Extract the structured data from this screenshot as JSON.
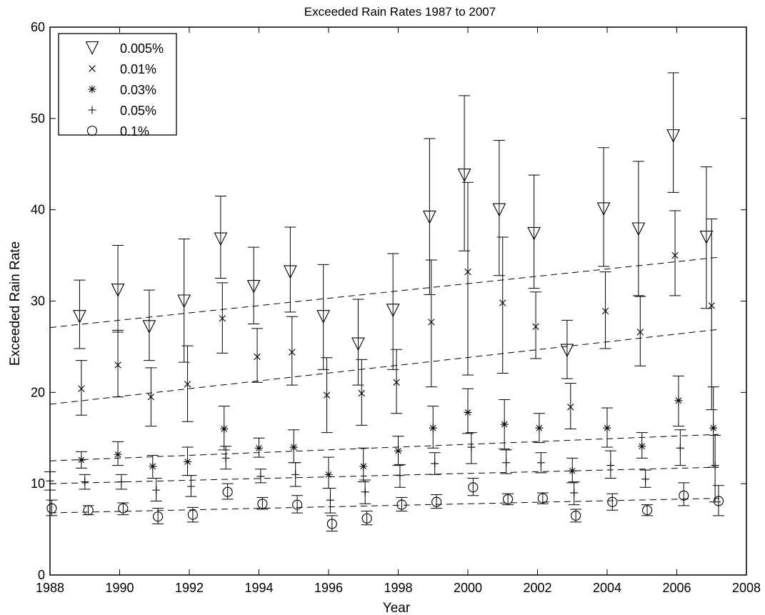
{
  "chart_data": {
    "type": "scatter",
    "title": "Exceeded Rain Rates 1987 to 2007",
    "xlabel": "Year",
    "ylabel": "Exceeded Rain Rate",
    "xlim": [
      1988,
      2008
    ],
    "ylim": [
      0,
      60
    ],
    "xticks": [
      1988,
      1990,
      1992,
      1994,
      1996,
      1998,
      2000,
      2002,
      2004,
      2006,
      2008
    ],
    "yticks": [
      0,
      10,
      20,
      30,
      40,
      50,
      60
    ],
    "grid": false,
    "legend_position": "top-left",
    "series": [
      {
        "name": "0.005%",
        "marker": "triangle-down",
        "x": [
          1988.85,
          1989.95,
          1990.85,
          1991.85,
          1992.9,
          1993.85,
          1994.9,
          1995.85,
          1996.85,
          1997.85,
          1998.9,
          1999.9,
          2000.9,
          2001.9,
          2002.85,
          2003.9,
          2004.9,
          2005.9,
          2006.85
        ],
        "y": [
          28.3,
          31.2,
          27.2,
          30.0,
          36.8,
          31.6,
          33.2,
          28.3,
          25.3,
          29.0,
          39.2,
          43.8,
          40.0,
          37.4,
          24.6,
          40.1,
          37.9,
          48.1,
          37.0
        ],
        "lower": [
          24.8,
          26.6,
          23.5,
          23.3,
          32.5,
          27.5,
          28.8,
          22.5,
          20.8,
          22.5,
          30.7,
          35.5,
          32.8,
          31.4,
          21.5,
          33.8,
          30.6,
          41.9,
          29.2
        ],
        "upper": [
          32.3,
          36.1,
          31.2,
          36.8,
          41.5,
          35.9,
          38.1,
          34.0,
          30.2,
          35.2,
          47.8,
          52.5,
          47.6,
          43.8,
          27.9,
          46.8,
          45.3,
          55.0,
          44.7
        ]
      },
      {
        "name": "0.01%",
        "marker": "x",
        "x": [
          1988.9,
          1989.95,
          1990.9,
          1991.95,
          1992.95,
          1993.95,
          1994.95,
          1995.95,
          1996.95,
          1997.95,
          1998.95,
          2000.0,
          2001.0,
          2001.95,
          2002.95,
          2003.95,
          2004.95,
          2005.95,
          2007.0
        ],
        "y": [
          20.4,
          23.0,
          19.5,
          20.9,
          28.1,
          23.9,
          24.4,
          19.7,
          19.9,
          21.1,
          27.7,
          33.2,
          29.8,
          27.2,
          18.4,
          28.9,
          26.6,
          35.0,
          29.5
        ],
        "lower": [
          17.5,
          19.5,
          16.3,
          16.8,
          24.3,
          21.1,
          20.8,
          15.6,
          16.4,
          17.7,
          20.6,
          21.9,
          22.1,
          23.7,
          16.0,
          24.8,
          22.9,
          30.6,
          18.1
        ],
        "upper": [
          23.5,
          26.8,
          22.7,
          25.1,
          32.0,
          27.0,
          28.3,
          23.8,
          23.6,
          24.7,
          34.5,
          43.0,
          37.0,
          31.0,
          21.0,
          33.2,
          30.5,
          39.9,
          39.0
        ]
      },
      {
        "name": "0.03%",
        "marker": "asterisk",
        "x": [
          1988.9,
          1989.95,
          1990.95,
          1991.95,
          1993.0,
          1994.0,
          1995.0,
          1996.0,
          1997.0,
          1998.0,
          1999.0,
          2000.0,
          2001.05,
          2002.05,
          2003.0,
          2004.0,
          2005.0,
          2006.05,
          2007.05
        ],
        "y": [
          12.6,
          13.2,
          11.9,
          12.4,
          16.0,
          13.9,
          14.0,
          11.0,
          11.9,
          13.6,
          16.1,
          17.8,
          16.5,
          16.1,
          11.4,
          16.1,
          14.1,
          19.1,
          16.1
        ],
        "lower": [
          11.7,
          12.0,
          10.6,
          10.9,
          13.7,
          12.9,
          12.3,
          9.5,
          10.2,
          12.0,
          13.9,
          15.5,
          13.8,
          14.5,
          10.1,
          14.0,
          12.8,
          16.3,
          11.8
        ],
        "upper": [
          13.5,
          14.6,
          13.1,
          14.0,
          18.5,
          15.0,
          15.9,
          12.9,
          13.9,
          15.2,
          18.5,
          20.4,
          19.2,
          17.7,
          12.8,
          18.3,
          15.6,
          21.8,
          20.6
        ]
      },
      {
        "name": "0.05%",
        "marker": "plus",
        "x": [
          1988.0,
          1989.0,
          1990.05,
          1991.05,
          1992.05,
          1993.05,
          1994.05,
          1995.05,
          1996.05,
          1997.05,
          1998.05,
          1999.05,
          2000.1,
          2001.1,
          2002.1,
          2003.05,
          2004.1,
          2005.1,
          2006.1,
          2007.1
        ],
        "y": [
          10.3,
          10.2,
          10.2,
          9.3,
          9.7,
          12.8,
          10.8,
          11.0,
          8.2,
          9.1,
          10.9,
          12.2,
          14.0,
          12.3,
          12.3,
          9.0,
          12.0,
          10.5,
          13.9,
          12.0
        ],
        "lower": [
          9.3,
          9.4,
          9.4,
          8.1,
          8.6,
          11.6,
          10.1,
          9.7,
          6.8,
          7.8,
          9.6,
          11.0,
          12.2,
          11.1,
          11.2,
          7.7,
          10.6,
          9.6,
          12.0,
          8.0
        ],
        "upper": [
          11.3,
          11.0,
          11.0,
          10.6,
          10.9,
          14.1,
          11.6,
          12.3,
          9.5,
          10.4,
          12.1,
          13.4,
          15.6,
          13.7,
          13.4,
          10.2,
          13.6,
          11.5,
          15.9,
          15.3
        ]
      },
      {
        "name": "0.1%",
        "marker": "circle",
        "x": [
          1988.05,
          1989.1,
          1990.1,
          1991.1,
          1992.1,
          1993.1,
          1994.1,
          1995.1,
          1996.1,
          1997.1,
          1998.1,
          1999.1,
          2000.15,
          2001.15,
          2002.15,
          2003.1,
          2004.15,
          2005.15,
          2006.2,
          2007.2
        ],
        "y": [
          7.3,
          7.1,
          7.3,
          6.4,
          6.6,
          9.1,
          7.8,
          7.7,
          5.6,
          6.2,
          7.7,
          8.0,
          9.6,
          8.3,
          8.4,
          6.5,
          8.0,
          7.1,
          8.7,
          8.1
        ],
        "lower": [
          6.5,
          6.6,
          6.6,
          5.6,
          5.8,
          8.3,
          7.2,
          6.8,
          4.8,
          5.5,
          7.0,
          7.3,
          8.7,
          7.7,
          7.8,
          5.8,
          7.1,
          6.5,
          7.6,
          6.5
        ],
        "upper": [
          8.2,
          7.6,
          7.9,
          7.3,
          7.4,
          10.0,
          8.5,
          8.7,
          6.5,
          7.0,
          8.5,
          8.8,
          10.6,
          8.9,
          9.0,
          7.2,
          8.9,
          7.7,
          10.1,
          9.8
        ]
      }
    ],
    "trend_lines": [
      {
        "style": "dashed",
        "x": [
          1988,
          2007.2
        ],
        "y": [
          27.1,
          34.8
        ]
      },
      {
        "style": "dashed",
        "x": [
          1988,
          2007.2
        ],
        "y": [
          18.7,
          26.9
        ]
      },
      {
        "style": "dashed",
        "x": [
          1988,
          2007.2
        ],
        "y": [
          12.5,
          15.4
        ]
      },
      {
        "style": "dashed",
        "x": [
          1988,
          2007.2
        ],
        "y": [
          10.0,
          11.8
        ]
      },
      {
        "style": "dashed",
        "x": [
          1988,
          2007.2
        ],
        "y": [
          6.8,
          8.4
        ]
      }
    ]
  }
}
